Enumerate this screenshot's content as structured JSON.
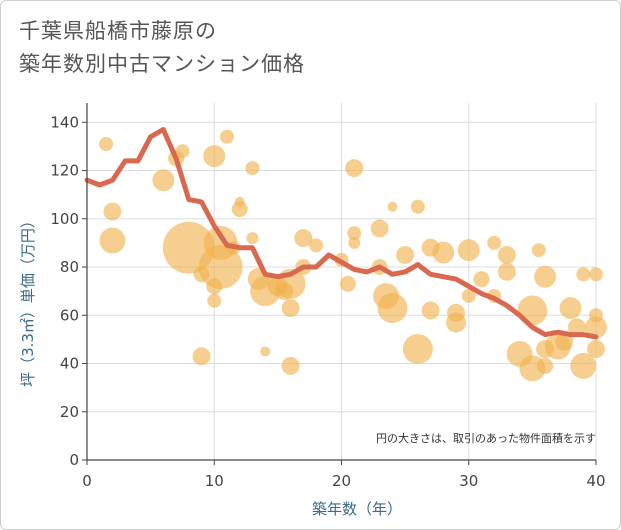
{
  "title_line1": "千葉県船橋市藤原の",
  "title_line2": "築年数別中古マンション価格",
  "chart_data": {
    "type": "scatter",
    "xlabel": "築年数（年）",
    "ylabel": "坪（3.3㎡）単価（万円）",
    "note": "円の大きさは、取引のあった物件面積を示す",
    "xlim": [
      0,
      40
    ],
    "ylim": [
      0,
      148
    ],
    "xticks": [
      "0",
      "10",
      "20",
      "30",
      "40"
    ],
    "yticks": [
      "0",
      "20",
      "40",
      "60",
      "80",
      "100",
      "120",
      "140"
    ],
    "colors": {
      "bubble": "#f0b24c",
      "line": "#d9684f",
      "grid": "#dddddd",
      "axis": "#444444"
    },
    "bubbles": [
      {
        "x": 1.5,
        "y": 131,
        "s": 7
      },
      {
        "x": 2,
        "y": 103,
        "s": 9
      },
      {
        "x": 2,
        "y": 91,
        "s": 13
      },
      {
        "x": 6,
        "y": 116,
        "s": 11
      },
      {
        "x": 7,
        "y": 125,
        "s": 8
      },
      {
        "x": 7.5,
        "y": 128,
        "s": 7
      },
      {
        "x": 8,
        "y": 88,
        "s": 26
      },
      {
        "x": 9,
        "y": 43,
        "s": 9
      },
      {
        "x": 9,
        "y": 77,
        "s": 8
      },
      {
        "x": 10,
        "y": 126,
        "s": 11
      },
      {
        "x": 10,
        "y": 66,
        "s": 7
      },
      {
        "x": 10,
        "y": 72,
        "s": 8
      },
      {
        "x": 10.5,
        "y": 90,
        "s": 17
      },
      {
        "x": 10.5,
        "y": 80,
        "s": 22
      },
      {
        "x": 11,
        "y": 134,
        "s": 7
      },
      {
        "x": 11.5,
        "y": 88,
        "s": 7
      },
      {
        "x": 12,
        "y": 104,
        "s": 8
      },
      {
        "x": 12,
        "y": 107,
        "s": 5
      },
      {
        "x": 13,
        "y": 121,
        "s": 7
      },
      {
        "x": 13,
        "y": 92,
        "s": 6
      },
      {
        "x": 13.5,
        "y": 75,
        "s": 11
      },
      {
        "x": 14,
        "y": 70,
        "s": 15
      },
      {
        "x": 14,
        "y": 45,
        "s": 5
      },
      {
        "x": 15,
        "y": 72,
        "s": 10
      },
      {
        "x": 15.5,
        "y": 70,
        "s": 9
      },
      {
        "x": 16,
        "y": 73,
        "s": 15
      },
      {
        "x": 16,
        "y": 63,
        "s": 9
      },
      {
        "x": 16,
        "y": 39,
        "s": 9
      },
      {
        "x": 17,
        "y": 92,
        "s": 9
      },
      {
        "x": 17,
        "y": 80,
        "s": 8
      },
      {
        "x": 18,
        "y": 89,
        "s": 7
      },
      {
        "x": 20,
        "y": 83,
        "s": 7
      },
      {
        "x": 20.5,
        "y": 73,
        "s": 8
      },
      {
        "x": 21,
        "y": 121,
        "s": 9
      },
      {
        "x": 21,
        "y": 90,
        "s": 6
      },
      {
        "x": 21,
        "y": 94,
        "s": 7
      },
      {
        "x": 23,
        "y": 80,
        "s": 8
      },
      {
        "x": 23,
        "y": 96,
        "s": 9
      },
      {
        "x": 23.5,
        "y": 68,
        "s": 13
      },
      {
        "x": 24,
        "y": 63,
        "s": 15
      },
      {
        "x": 24,
        "y": 105,
        "s": 5
      },
      {
        "x": 25,
        "y": 85,
        "s": 9
      },
      {
        "x": 26,
        "y": 105,
        "s": 7
      },
      {
        "x": 26,
        "y": 46,
        "s": 15
      },
      {
        "x": 27,
        "y": 88,
        "s": 9
      },
      {
        "x": 27,
        "y": 62,
        "s": 9
      },
      {
        "x": 28,
        "y": 86,
        "s": 11
      },
      {
        "x": 29,
        "y": 61,
        "s": 9
      },
      {
        "x": 29,
        "y": 57,
        "s": 10
      },
      {
        "x": 30,
        "y": 87,
        "s": 11
      },
      {
        "x": 30,
        "y": 68,
        "s": 7
      },
      {
        "x": 31,
        "y": 75,
        "s": 8
      },
      {
        "x": 32,
        "y": 90,
        "s": 7
      },
      {
        "x": 32,
        "y": 68,
        "s": 7
      },
      {
        "x": 33,
        "y": 78,
        "s": 9
      },
      {
        "x": 33,
        "y": 85,
        "s": 9
      },
      {
        "x": 34,
        "y": 44,
        "s": 13
      },
      {
        "x": 35,
        "y": 62,
        "s": 15
      },
      {
        "x": 35,
        "y": 38,
        "s": 13
      },
      {
        "x": 35.5,
        "y": 87,
        "s": 7
      },
      {
        "x": 36,
        "y": 76,
        "s": 11
      },
      {
        "x": 36,
        "y": 46,
        "s": 9
      },
      {
        "x": 36,
        "y": 39,
        "s": 8
      },
      {
        "x": 37,
        "y": 47,
        "s": 13
      },
      {
        "x": 37.5,
        "y": 49,
        "s": 9
      },
      {
        "x": 38,
        "y": 63,
        "s": 11
      },
      {
        "x": 38.5,
        "y": 55,
        "s": 9
      },
      {
        "x": 39,
        "y": 39,
        "s": 13
      },
      {
        "x": 39,
        "y": 77,
        "s": 7
      },
      {
        "x": 40,
        "y": 60,
        "s": 7
      },
      {
        "x": 40,
        "y": 55,
        "s": 11
      },
      {
        "x": 40,
        "y": 46,
        "s": 9
      },
      {
        "x": 40,
        "y": 77,
        "s": 7
      }
    ],
    "line": {
      "x": [
        0,
        1,
        2,
        3,
        4,
        5,
        6,
        7,
        8,
        9,
        10,
        11,
        12,
        13,
        14,
        15,
        16,
        17,
        18,
        19,
        20,
        21,
        22,
        23,
        24,
        25,
        26,
        27,
        28,
        29,
        30,
        31,
        32,
        33,
        34,
        35,
        36,
        37,
        38,
        39,
        40
      ],
      "y": [
        116,
        114,
        116,
        124,
        124,
        134,
        137,
        125,
        108,
        107,
        97,
        89,
        88,
        88,
        77,
        76,
        77,
        80,
        80,
        85,
        82,
        79,
        78,
        80,
        77,
        78,
        81,
        77,
        76,
        75,
        72,
        69,
        67,
        64,
        60,
        55,
        52,
        53,
        52,
        52,
        51
      ]
    }
  }
}
